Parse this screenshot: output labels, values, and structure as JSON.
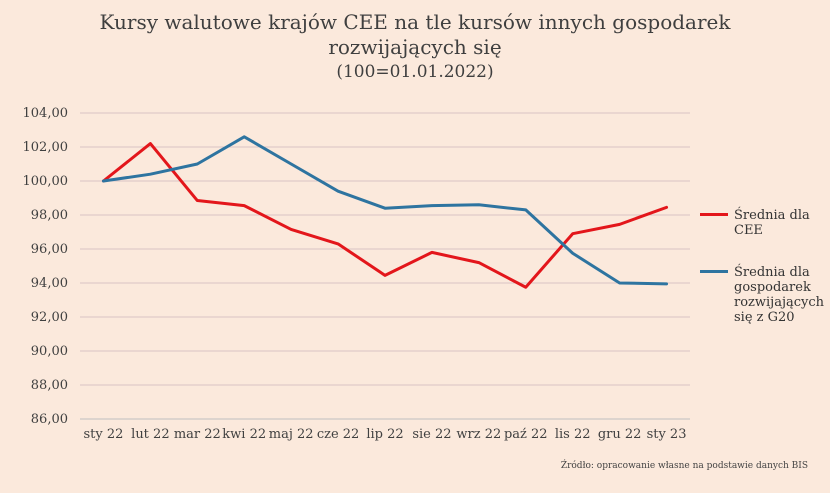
{
  "title": "Kursy walutowe krajów CEE na tle kursów innych gospodarek rozwijających się",
  "subtitle": "(100=01.01.2022)",
  "source": "Źródło: opracowanie własne na podstawie danych BIS",
  "colors": {
    "cee": "#e3161b",
    "g20": "#2e74a0",
    "grid": "#d9c4c4",
    "background": "#fbe9dc"
  },
  "chart_data": {
    "type": "line",
    "title": "Kursy walutowe krajów CEE na tle kursów innych gospodarek rozwijających się",
    "subtitle": "(100=01.01.2022)",
    "categories": [
      "sty 22",
      "lut 22",
      "mar 22",
      "kwi 22",
      "maj 22",
      "cze 22",
      "lip 22",
      "sie 22",
      "wrz 22",
      "paź 22",
      "lis 22",
      "gru 22",
      "sty 23"
    ],
    "series": [
      {
        "name": "Średnia dla CEE",
        "color": "#e3161b",
        "values": [
          100.0,
          102.2,
          98.85,
          98.55,
          97.15,
          96.3,
          94.45,
          95.8,
          95.2,
          93.75,
          96.9,
          97.45,
          98.45
        ]
      },
      {
        "name": "Średnia dla gospodarek rozwijających się z G20",
        "color": "#2e74a0",
        "values": [
          100.0,
          100.4,
          101.0,
          102.6,
          101.0,
          99.4,
          98.4,
          98.55,
          98.6,
          98.3,
          95.75,
          94.0,
          93.95
        ]
      }
    ],
    "yticks": [
      "86,00",
      "88,00",
      "90,00",
      "92,00",
      "94,00",
      "96,00",
      "98,00",
      "100,00",
      "102,00",
      "104,00"
    ],
    "ylim": [
      86,
      104
    ],
    "grid": true,
    "legend": "right"
  }
}
